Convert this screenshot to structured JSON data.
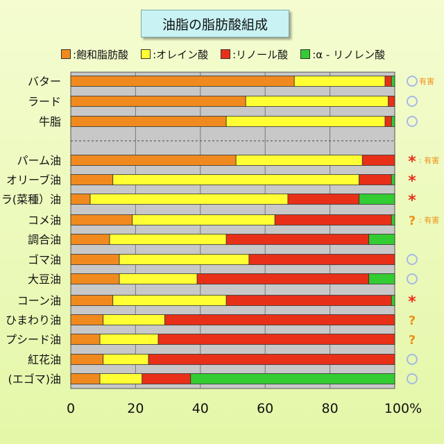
{
  "title": "油脂の脂肪酸組成",
  "legend": {
    "items": [
      {
        "label": ":飽和脂肪酸",
        "color": "#f08a1e"
      },
      {
        "label": ":オレイン酸",
        "color": "#ffff33"
      },
      {
        "label": ":リノール酸",
        "color": "#e83018"
      },
      {
        "label": ":α - リノレン酸",
        "color": "#33cc33"
      }
    ]
  },
  "chart_data": {
    "type": "bar",
    "orientation": "horizontal",
    "stacked": true,
    "title": "油脂の脂肪酸組成",
    "xlim": [
      0,
      100
    ],
    "x_ticks": [
      "0",
      "20",
      "40",
      "60",
      "80",
      "100%"
    ],
    "grid": true,
    "legend_position": "top",
    "categories": [
      "バター",
      "ラード",
      "牛脂",
      "パーム油",
      "オリーブ油",
      "ラ(菜種）油",
      "コメ油",
      "調合油",
      "ゴマ油",
      "大豆油",
      "コーン油",
      "ひまわり油",
      "プシード油",
      "紅花油",
      "(エゴマ)油"
    ],
    "separator_after": "牛脂",
    "series": [
      {
        "name": "飽和脂肪酸",
        "values": [
          69,
          54,
          48,
          51,
          13,
          6,
          19,
          12,
          15,
          15,
          13,
          10,
          9,
          10,
          9
        ]
      },
      {
        "name": "オレイン酸",
        "values": [
          28,
          44,
          49,
          39,
          76,
          61,
          44,
          36,
          40,
          24,
          35,
          19,
          18,
          14,
          13
        ]
      },
      {
        "name": "リノール酸",
        "values": [
          2,
          2,
          2,
          10,
          10,
          22,
          36,
          44,
          45,
          53,
          51,
          71,
          73,
          76,
          15
        ]
      },
      {
        "name": "α - リノレン酸",
        "values": [
          1,
          0,
          1,
          0,
          1,
          11,
          1,
          8,
          0,
          8,
          1,
          0,
          0,
          0,
          63
        ]
      }
    ],
    "annotations": [
      {
        "row": "バター",
        "marker": "circle",
        "text": "有害"
      },
      {
        "row": "ラード",
        "marker": "circle",
        "text": ""
      },
      {
        "row": "牛脂",
        "marker": "circle",
        "text": ""
      },
      {
        "row": "パーム油",
        "marker": "asterisk",
        "text": ": 有害"
      },
      {
        "row": "オリーブ油",
        "marker": "asterisk",
        "text": ""
      },
      {
        "row": "ラ(菜種）油",
        "marker": "asterisk",
        "text": ""
      },
      {
        "row": "コメ油",
        "marker": "question",
        "text": ": 有害"
      },
      {
        "row": "調合油",
        "marker": "none",
        "text": ""
      },
      {
        "row": "ゴマ油",
        "marker": "circle",
        "text": ""
      },
      {
        "row": "大豆油",
        "marker": "circle",
        "text": ""
      },
      {
        "row": "コーン油",
        "marker": "asterisk",
        "text": ""
      },
      {
        "row": "ひまわり油",
        "marker": "question",
        "text": ""
      },
      {
        "row": "プシード油",
        "marker": "question",
        "text": ""
      },
      {
        "row": "紅花油",
        "marker": "circle",
        "text": ""
      },
      {
        "row": "(エゴマ)油",
        "marker": "circle",
        "text": ""
      }
    ],
    "annotation_colors": {
      "circle": "#a8b8e8",
      "asterisk": "#e83018",
      "question": "#f09018",
      "text": "#f09018"
    }
  }
}
